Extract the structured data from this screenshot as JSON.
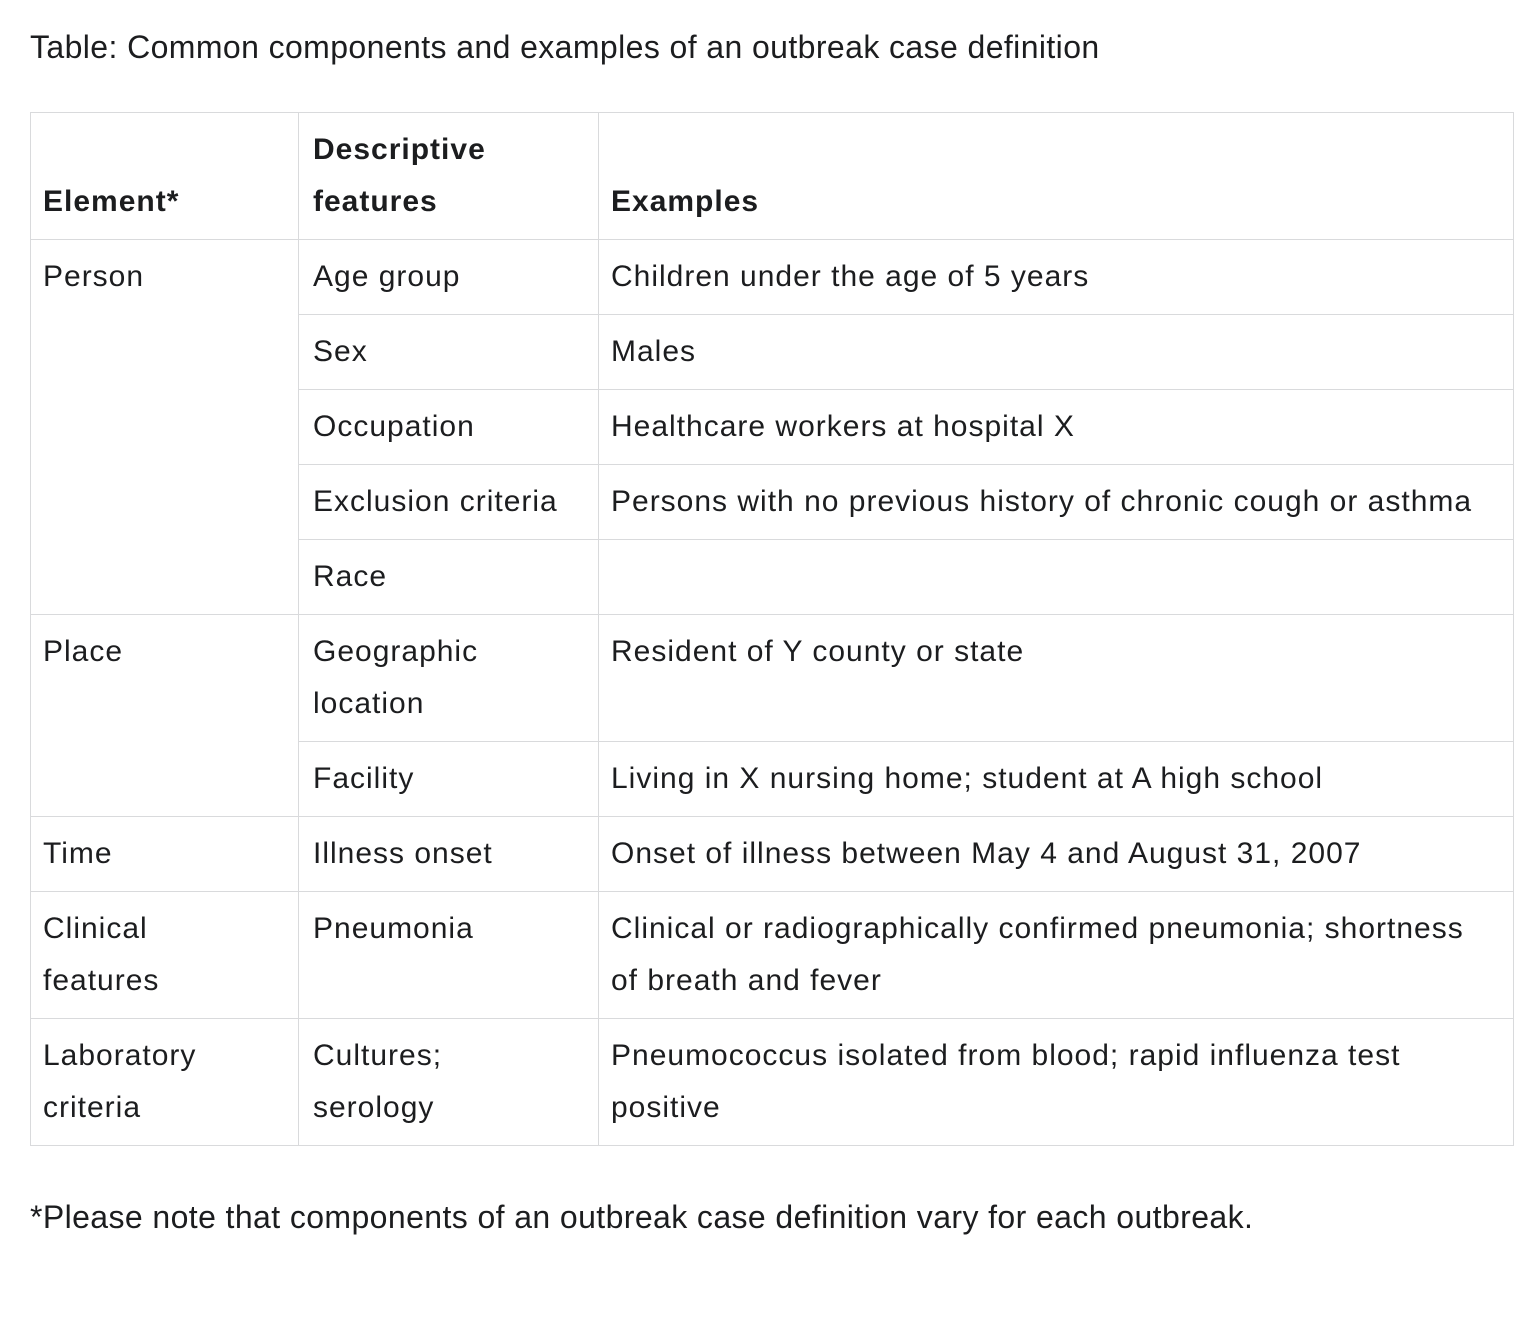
{
  "page": {
    "title": "Table: Common components and examples of an outbreak case definition",
    "footnote": "*Please note that components of an outbreak case definition vary for each outbreak."
  },
  "table": {
    "headers": [
      "Element*",
      "Descriptive features",
      "Examples"
    ],
    "row_groups": [
      {
        "element": "Person",
        "rows": [
          {
            "feature": "Age group",
            "example": "Children under the age of 5 years"
          },
          {
            "feature": "Sex",
            "example": "Males"
          },
          {
            "feature": "Occupation",
            "example": "Healthcare workers at hospital X"
          },
          {
            "feature": "Exclusion criteria",
            "example": "Persons with no previous history of chronic cough or asthma"
          },
          {
            "feature": "Race",
            "example": ""
          }
        ]
      },
      {
        "element": "Place",
        "rows": [
          {
            "feature": "Geographic location",
            "example": "Resident of Y county or state"
          },
          {
            "feature": "Facility",
            "example": "Living in X nursing home; student at A high school"
          }
        ]
      },
      {
        "element": "Time",
        "rows": [
          {
            "feature": "Illness onset",
            "example": "Onset of illness between May 4 and August 31, 2007"
          }
        ]
      },
      {
        "element": "Clinical features",
        "rows": [
          {
            "feature": "Pneumonia",
            "example": "Clinical or radiographically confirmed pneumonia; shortness of breath and fever"
          }
        ]
      },
      {
        "element": "Laboratory criteria",
        "rows": [
          {
            "feature": "Cultures; serology",
            "example": "Pneumococcus isolated from blood; rapid influenza test positive"
          }
        ]
      }
    ]
  },
  "colors": {
    "text": "#1c1d1f",
    "border": "#d9dadc",
    "background": "#ffffff"
  }
}
